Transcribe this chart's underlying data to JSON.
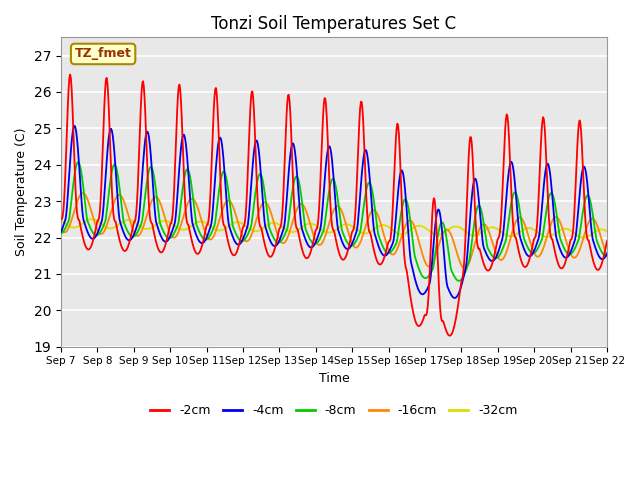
{
  "title": "Tonzi Soil Temperatures Set C",
  "xlabel": "Time",
  "ylabel": "Soil Temperature (C)",
  "ylim": [
    19.0,
    27.5
  ],
  "yticks": [
    19.0,
    20.0,
    21.0,
    22.0,
    23.0,
    24.0,
    25.0,
    26.0,
    27.0
  ],
  "colors": {
    "2cm": "#ff0000",
    "4cm": "#0000ee",
    "8cm": "#00cc00",
    "16cm": "#ff8800",
    "32cm": "#dddd00"
  },
  "legend_labels": [
    "-2cm",
    "-4cm",
    "-8cm",
    "-16cm",
    "-32cm"
  ],
  "legend_colors": [
    "#ff0000",
    "#0000ee",
    "#00cc00",
    "#ff8800",
    "#dddd00"
  ],
  "annotation_text": "TZ_fmet",
  "annotation_bg": "#ffffcc",
  "annotation_border": "#aa8800",
  "bg_color": "#e8e8e8",
  "plot_bg": "#d8d8d8",
  "grid_color": "#ffffff",
  "n_points": 720,
  "n_days": 15
}
